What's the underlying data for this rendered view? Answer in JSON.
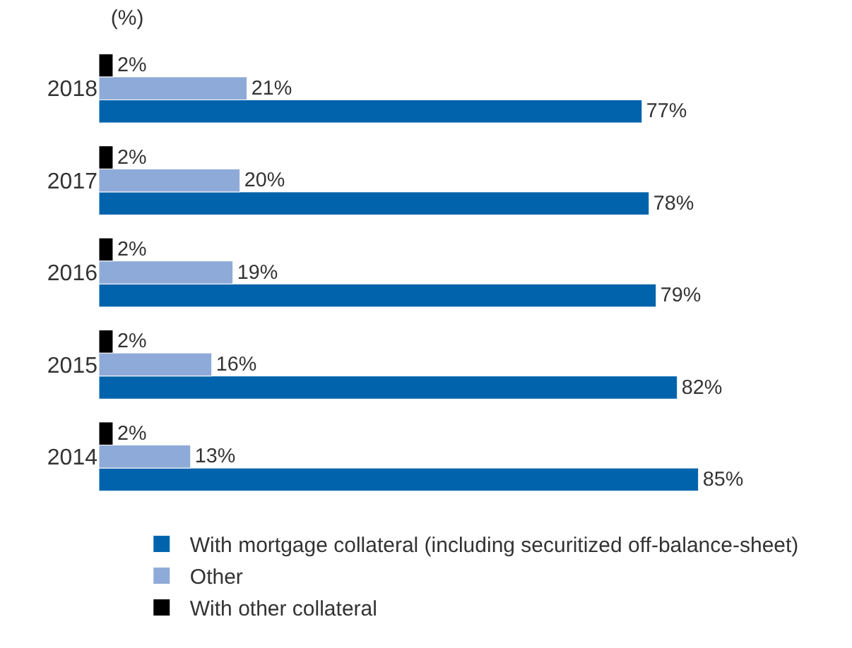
{
  "chart_data": {
    "type": "bar",
    "orientation": "horizontal",
    "title": "(%)",
    "categories": [
      "2018",
      "2017",
      "2016",
      "2015",
      "2014"
    ],
    "series": [
      {
        "name": "With mortgage collateral (including securitized off-balance-sheet)",
        "color": "#0063ac",
        "values": [
          77,
          78,
          79,
          82,
          85
        ],
        "value_labels": [
          "77%",
          "78%",
          "79%",
          "82%",
          "85%"
        ]
      },
      {
        "name": "Other",
        "color": "#8eaad8",
        "values": [
          21,
          20,
          19,
          16,
          13
        ],
        "value_labels": [
          "21%",
          "20%",
          "19%",
          "16%",
          "13%"
        ]
      },
      {
        "name": "With other collateral",
        "color": "#000000",
        "values": [
          2,
          2,
          2,
          2,
          2
        ],
        "value_labels": [
          "2%",
          "2%",
          "2%",
          "2%",
          "2%"
        ]
      }
    ],
    "legend": "bottom",
    "grid": false
  }
}
